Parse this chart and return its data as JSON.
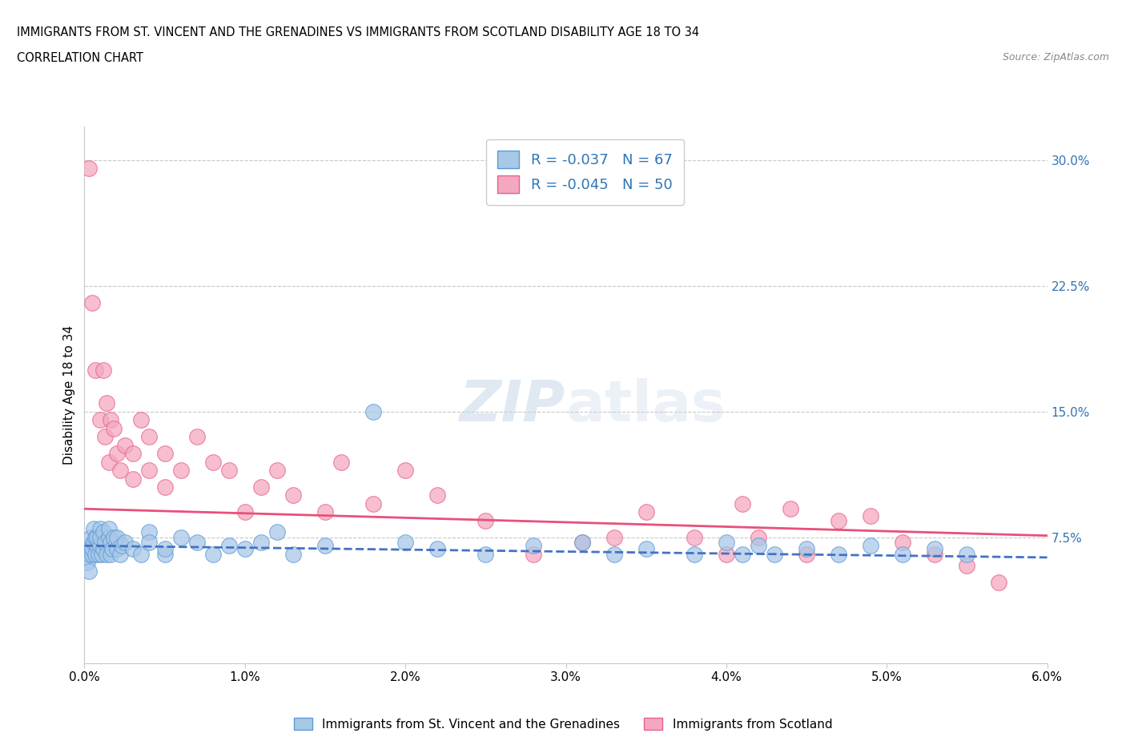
{
  "title_line1": "IMMIGRANTS FROM ST. VINCENT AND THE GRENADINES VS IMMIGRANTS FROM SCOTLAND DISABILITY AGE 18 TO 34",
  "title_line2": "CORRELATION CHART",
  "source": "Source: ZipAtlas.com",
  "ylabel": "Disability Age 18 to 34",
  "xlim": [
    0.0,
    0.06
  ],
  "ylim": [
    0.0,
    0.32
  ],
  "right_yticks": [
    0.075,
    0.15,
    0.225,
    0.3
  ],
  "right_yticklabels": [
    "7.5%",
    "15.0%",
    "22.5%",
    "30.0%"
  ],
  "bottom_xticks": [
    0.0,
    0.01,
    0.02,
    0.03,
    0.04,
    0.05,
    0.06
  ],
  "bottom_xticklabels": [
    "0.0%",
    "1.0%",
    "2.0%",
    "3.0%",
    "4.0%",
    "5.0%",
    "6.0%"
  ],
  "color_blue": "#A8C8E8",
  "color_pink": "#F4A8C0",
  "color_blue_edge": "#5B9BD5",
  "color_pink_edge": "#E8608A",
  "color_blue_line": "#4472C4",
  "color_pink_line": "#E8507A",
  "color_right_axis": "#2E75B6",
  "grid_color": "#C8C8C8",
  "blue_trend_y0": 0.07,
  "blue_trend_y1": 0.063,
  "pink_trend_y0": 0.092,
  "pink_trend_y1": 0.076,
  "blue_x": [
    0.0002,
    0.0003,
    0.0003,
    0.0004,
    0.0004,
    0.0005,
    0.0005,
    0.0006,
    0.0006,
    0.0007,
    0.0007,
    0.0008,
    0.0008,
    0.0009,
    0.001,
    0.001,
    0.001,
    0.0011,
    0.0012,
    0.0012,
    0.0013,
    0.0014,
    0.0015,
    0.0015,
    0.0016,
    0.0016,
    0.0017,
    0.0018,
    0.002,
    0.002,
    0.0022,
    0.0023,
    0.0025,
    0.003,
    0.0035,
    0.004,
    0.004,
    0.005,
    0.005,
    0.006,
    0.007,
    0.008,
    0.009,
    0.01,
    0.011,
    0.012,
    0.013,
    0.015,
    0.018,
    0.02,
    0.022,
    0.025,
    0.028,
    0.031,
    0.033,
    0.035,
    0.038,
    0.04,
    0.041,
    0.042,
    0.043,
    0.045,
    0.047,
    0.049,
    0.051,
    0.053,
    0.055
  ],
  "blue_y": [
    0.06,
    0.055,
    0.065,
    0.07,
    0.075,
    0.065,
    0.068,
    0.072,
    0.08,
    0.065,
    0.075,
    0.07,
    0.075,
    0.065,
    0.08,
    0.07,
    0.075,
    0.065,
    0.078,
    0.068,
    0.072,
    0.065,
    0.075,
    0.08,
    0.065,
    0.072,
    0.068,
    0.075,
    0.068,
    0.075,
    0.065,
    0.07,
    0.072,
    0.068,
    0.065,
    0.078,
    0.072,
    0.065,
    0.068,
    0.075,
    0.072,
    0.065,
    0.07,
    0.068,
    0.072,
    0.078,
    0.065,
    0.07,
    0.15,
    0.072,
    0.068,
    0.065,
    0.07,
    0.072,
    0.065,
    0.068,
    0.065,
    0.072,
    0.065,
    0.07,
    0.065,
    0.068,
    0.065,
    0.07,
    0.065,
    0.068,
    0.065
  ],
  "pink_x": [
    0.0003,
    0.0005,
    0.0007,
    0.001,
    0.0012,
    0.0013,
    0.0014,
    0.0015,
    0.0016,
    0.0018,
    0.002,
    0.0022,
    0.0025,
    0.003,
    0.003,
    0.0035,
    0.004,
    0.004,
    0.005,
    0.005,
    0.006,
    0.007,
    0.008,
    0.009,
    0.01,
    0.011,
    0.012,
    0.013,
    0.015,
    0.016,
    0.018,
    0.02,
    0.022,
    0.025,
    0.028,
    0.031,
    0.033,
    0.035,
    0.038,
    0.04,
    0.041,
    0.042,
    0.044,
    0.045,
    0.047,
    0.049,
    0.051,
    0.053,
    0.055,
    0.057
  ],
  "pink_y": [
    0.295,
    0.215,
    0.175,
    0.145,
    0.175,
    0.135,
    0.155,
    0.12,
    0.145,
    0.14,
    0.125,
    0.115,
    0.13,
    0.125,
    0.11,
    0.145,
    0.135,
    0.115,
    0.125,
    0.105,
    0.115,
    0.135,
    0.12,
    0.115,
    0.09,
    0.105,
    0.115,
    0.1,
    0.09,
    0.12,
    0.095,
    0.115,
    0.1,
    0.085,
    0.065,
    0.072,
    0.075,
    0.09,
    0.075,
    0.065,
    0.095,
    0.075,
    0.092,
    0.065,
    0.085,
    0.088,
    0.072,
    0.065,
    0.058,
    0.048
  ]
}
